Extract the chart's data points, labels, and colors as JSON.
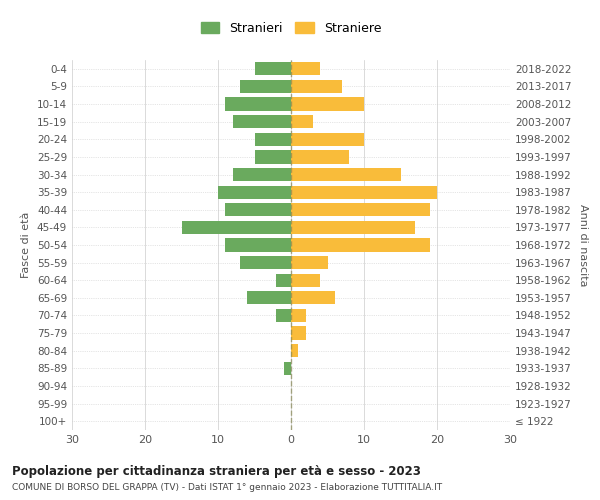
{
  "age_groups": [
    "100+",
    "95-99",
    "90-94",
    "85-89",
    "80-84",
    "75-79",
    "70-74",
    "65-69",
    "60-64",
    "55-59",
    "50-54",
    "45-49",
    "40-44",
    "35-39",
    "30-34",
    "25-29",
    "20-24",
    "15-19",
    "10-14",
    "5-9",
    "0-4"
  ],
  "birth_years": [
    "≤ 1922",
    "1923-1927",
    "1928-1932",
    "1933-1937",
    "1938-1942",
    "1943-1947",
    "1948-1952",
    "1953-1957",
    "1958-1962",
    "1963-1967",
    "1968-1972",
    "1973-1977",
    "1978-1982",
    "1983-1987",
    "1988-1992",
    "1993-1997",
    "1998-2002",
    "2003-2007",
    "2008-2012",
    "2013-2017",
    "2018-2022"
  ],
  "males": [
    0,
    0,
    0,
    1,
    0,
    0,
    2,
    6,
    2,
    7,
    9,
    15,
    9,
    10,
    8,
    5,
    5,
    8,
    9,
    7,
    5
  ],
  "females": [
    0,
    0,
    0,
    0,
    1,
    2,
    2,
    6,
    4,
    5,
    19,
    17,
    19,
    20,
    15,
    8,
    10,
    3,
    10,
    7,
    4
  ],
  "male_color": "#6aaa5e",
  "female_color": "#f9bc3a",
  "dashed_color": "#888855",
  "background_color": "#ffffff",
  "grid_color": "#cccccc",
  "title": "Popolazione per cittadinanza straniera per età e sesso - 2023",
  "subtitle": "COMUNE DI BORSO DEL GRAPPA (TV) - Dati ISTAT 1° gennaio 2023 - Elaborazione TUTTITALIA.IT",
  "ylabel_left": "Fasce di età",
  "ylabel_right": "Anni di nascita",
  "legend_males": "Stranieri",
  "legend_females": "Straniere",
  "xlim": 30,
  "bar_height": 0.75
}
